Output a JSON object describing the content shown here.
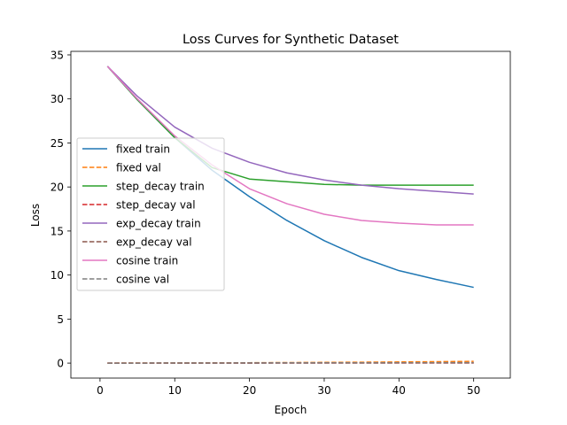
{
  "chart_data": {
    "type": "line",
    "title": "Loss Curves for Synthetic Dataset",
    "xlabel": "Epoch",
    "ylabel": "Loss",
    "xlim": [
      -3.9,
      54.9
    ],
    "ylim": [
      -1.7,
      35.4
    ],
    "xticks": [
      0,
      10,
      20,
      30,
      40,
      50
    ],
    "yticks": [
      0,
      5,
      10,
      15,
      20,
      25,
      30,
      35
    ],
    "grid": false,
    "legend_position": "center-left",
    "x": [
      1,
      5,
      10,
      15,
      20,
      25,
      30,
      35,
      40,
      45,
      50
    ],
    "series": [
      {
        "name": "fixed train",
        "color": "#1f77b4",
        "dash": "solid",
        "values": [
          33.7,
          29.9,
          25.6,
          21.9,
          18.9,
          16.2,
          13.9,
          12.0,
          10.5,
          9.5,
          8.6
        ]
      },
      {
        "name": "fixed val",
        "color": "#ff7f0e",
        "dash": "dashed",
        "values": [
          0.0,
          0.01,
          0.02,
          0.03,
          0.04,
          0.06,
          0.08,
          0.1,
          0.13,
          0.16,
          0.2
        ]
      },
      {
        "name": "step_decay train",
        "color": "#2ca02c",
        "dash": "solid",
        "values": [
          33.7,
          29.9,
          25.6,
          22.2,
          20.9,
          20.6,
          20.3,
          20.2,
          20.2,
          20.2,
          20.2
        ]
      },
      {
        "name": "step_decay val",
        "color": "#d62728",
        "dash": "dashed",
        "values": [
          0.0,
          0.0,
          0.0,
          0.0,
          0.0,
          0.01,
          0.01,
          0.01,
          0.01,
          0.01,
          0.01
        ]
      },
      {
        "name": "exp_decay train",
        "color": "#9467bd",
        "dash": "solid",
        "values": [
          33.7,
          30.3,
          26.8,
          24.4,
          22.8,
          21.6,
          20.8,
          20.2,
          19.8,
          19.5,
          19.2
        ]
      },
      {
        "name": "exp_decay val",
        "color": "#8c564b",
        "dash": "dashed",
        "values": [
          0.0,
          0.0,
          0.01,
          0.01,
          0.02,
          0.02,
          0.03,
          0.03,
          0.04,
          0.04,
          0.05
        ]
      },
      {
        "name": "cosine train",
        "color": "#e377c2",
        "dash": "solid",
        "values": [
          33.7,
          30.0,
          25.8,
          22.5,
          19.8,
          18.1,
          16.9,
          16.2,
          15.9,
          15.7,
          15.7
        ]
      },
      {
        "name": "cosine val",
        "color": "#7f7f7f",
        "dash": "dashed",
        "values": [
          0.0,
          0.0,
          0.01,
          0.01,
          0.01,
          0.02,
          0.02,
          0.02,
          0.03,
          0.03,
          0.03
        ]
      }
    ]
  }
}
